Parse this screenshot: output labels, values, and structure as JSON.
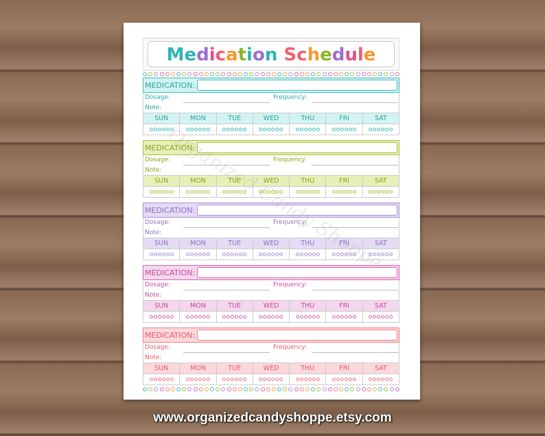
{
  "title": "Medication Schedule",
  "title_colors": [
    "#2fb5b5",
    "#2fb5b5",
    "#9b6fd0",
    "#e0508f",
    "#f06070",
    "#f59a30",
    "#8ab52a",
    "#2fb5b5",
    "#9b6fd0",
    "#2fb5b5",
    " ",
    "#f06070",
    "#f06070",
    "#f59a30",
    "#8ab52a",
    "#9b6fd0",
    "#e0508f",
    "#f06070",
    "#f59a30"
  ],
  "labels": {
    "medication": "MEDICATION:",
    "dosage": "Dosage:",
    "frequency": "Frequency:",
    "note": "Note:"
  },
  "days": [
    "SUN",
    "MON",
    "TUE",
    "WED",
    "THU",
    "FRI",
    "SAT"
  ],
  "doses_per_day": 6,
  "sections": [
    {
      "color": "#3cbcbc",
      "fill": "#d3f3f3",
      "text": "#2aa5a5"
    },
    {
      "color": "#a5c23a",
      "fill": "#e6f0b8",
      "text": "#8aa520"
    },
    {
      "color": "#ab90d8",
      "fill": "#e4dbf4",
      "text": "#9070c8"
    },
    {
      "color": "#d864b4",
      "fill": "#f4d7ec",
      "text": "#c84aa0"
    },
    {
      "color": "#f07a85",
      "fill": "#fbd8db",
      "text": "#e85a6a"
    }
  ],
  "dot_colors": [
    "#3cbcbc",
    "#a5c23a",
    "#ab90d8",
    "#d864b4",
    "#f07a85",
    "#f5a540"
  ],
  "watermark": "Organized Candy Shoppe",
  "footer_url": "www.organizedcandyshoppe.etsy.com"
}
